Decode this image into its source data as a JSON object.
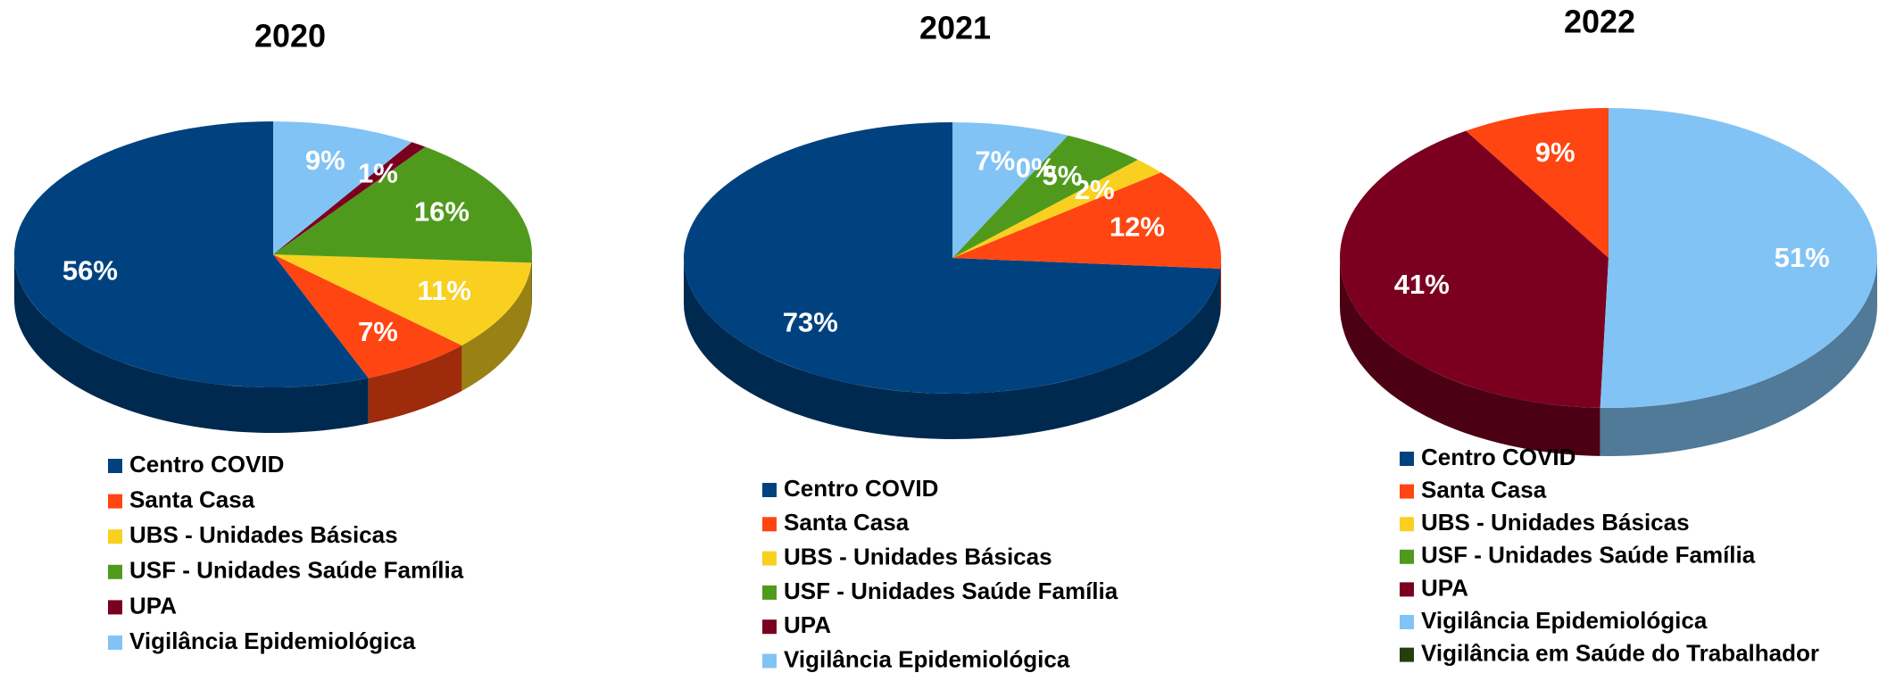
{
  "chart_data": [
    {
      "type": "pie",
      "title": "2020",
      "categories": [
        "Centro COVID",
        "Santa Casa",
        "UBS - Unidades Básicas",
        "USF - Unidades Saúde Família",
        "UPA",
        "Vigilância Epidemiológica"
      ],
      "values": [
        56,
        7,
        11,
        16,
        1,
        9
      ],
      "value_labels": [
        "56%",
        "7%",
        "11%",
        "16%",
        "1%",
        "9%"
      ],
      "colors": [
        "#00427f",
        "#ff4512",
        "#f9d01f",
        "#4f9a1d",
        "#7b0020",
        "#82c3f5"
      ]
    },
    {
      "type": "pie",
      "title": "2021",
      "categories": [
        "Centro COVID",
        "Santa Casa",
        "UBS - Unidades Básicas",
        "USF - Unidades Saúde Família",
        "UPA",
        "Vigilância Epidemiológica"
      ],
      "values": [
        73,
        12,
        2,
        5,
        0,
        7
      ],
      "value_labels": [
        "73%",
        "12%",
        "2%",
        "5%",
        "0%",
        "7%"
      ],
      "colors": [
        "#00427f",
        "#ff4512",
        "#f9d01f",
        "#4f9a1d",
        "#7b0020",
        "#82c3f5"
      ]
    },
    {
      "type": "pie",
      "title": "2022",
      "categories": [
        "Centro COVID",
        "Santa Casa",
        "UBS - Unidades Básicas",
        "USF - Unidades Saúde Família",
        "UPA",
        "Vigilância Epidemiológica",
        "Vigilância em Saúde do Trabalhador"
      ],
      "values": [
        0,
        9,
        0,
        0,
        41,
        51,
        0
      ],
      "value_labels": [
        null,
        "9%",
        null,
        null,
        "41%",
        "51%",
        null
      ],
      "colors": [
        "#00427f",
        "#ff4512",
        "#f9d01f",
        "#4f9a1d",
        "#7b0020",
        "#82c3f5",
        "#233f0f"
      ]
    }
  ]
}
